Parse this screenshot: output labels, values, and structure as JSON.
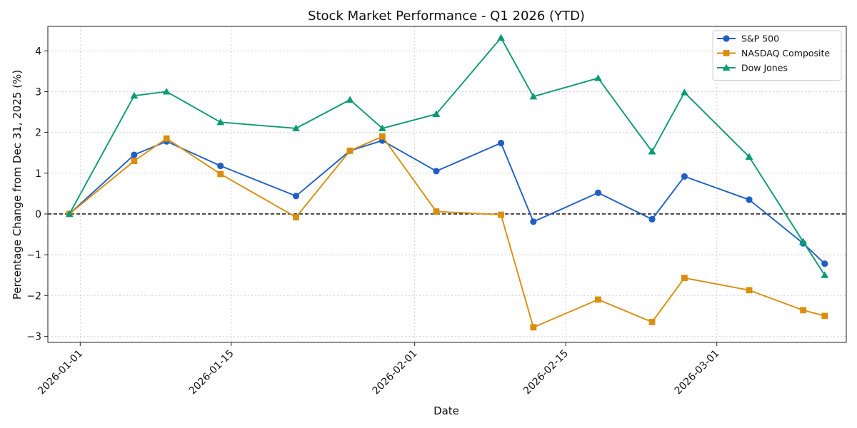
{
  "chart_data": {
    "type": "line",
    "title": "Stock Market Performance - Q1 2026 (YTD)",
    "xlabel": "Date",
    "ylabel": "Percentage Change from Dec 31, 2025 (%)",
    "x_ticks": [
      "2026-01-01",
      "2026-01-15",
      "2026-02-01",
      "2026-02-15",
      "2026-03-01"
    ],
    "y_ticks": [
      4,
      3,
      2,
      1,
      0,
      -1,
      -2,
      -3
    ],
    "xlim": [
      "2025-12-29",
      "2026-03-13"
    ],
    "ylim": [
      -3.15,
      4.6
    ],
    "grid": true,
    "reference_line": {
      "y": 0,
      "style": "dashed",
      "color": "#000000"
    },
    "legend_position": "top-right",
    "x": [
      "2025-12-31",
      "2026-01-06",
      "2026-01-09",
      "2026-01-14",
      "2026-01-21",
      "2026-01-26",
      "2026-01-29",
      "2026-02-03",
      "2026-02-09",
      "2026-02-12",
      "2026-02-18",
      "2026-02-23",
      "2026-02-26",
      "2026-03-04",
      "2026-03-09",
      "2026-03-11"
    ],
    "series": [
      {
        "name": "S&P 500",
        "color": "#1f5fc4",
        "marker": "circle",
        "values": [
          0.0,
          1.45,
          1.78,
          1.18,
          0.44,
          1.55,
          1.8,
          1.05,
          1.74,
          -0.19,
          0.52,
          -0.13,
          0.92,
          0.35,
          -0.72,
          -1.22
        ]
      },
      {
        "name": "NASDAQ Composite",
        "color": "#d98e0f",
        "marker": "square",
        "values": [
          0.0,
          1.3,
          1.85,
          0.98,
          -0.08,
          1.55,
          1.9,
          0.06,
          -0.02,
          -2.78,
          -2.1,
          -2.65,
          -1.57,
          -1.87,
          -2.36,
          -2.5
        ]
      },
      {
        "name": "Dow Jones",
        "color": "#0b9b72",
        "marker": "triangle",
        "values": [
          0.0,
          2.9,
          3.0,
          2.25,
          2.1,
          2.8,
          2.1,
          2.45,
          4.32,
          2.88,
          3.33,
          1.53,
          2.98,
          1.4,
          -0.68,
          -1.5
        ]
      }
    ]
  }
}
